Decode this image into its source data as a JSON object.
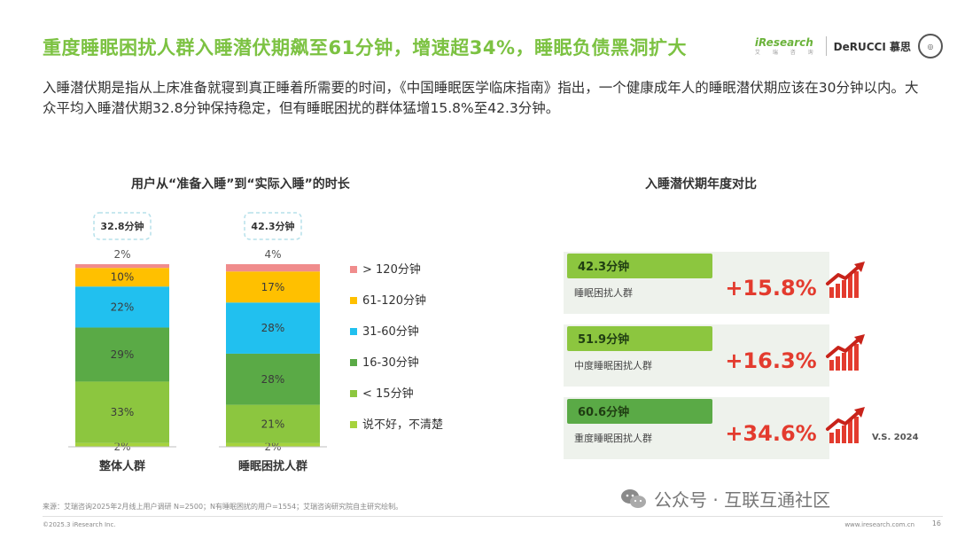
{
  "header": {
    "title": "重度睡眠困扰人群入睡潜伏期飙至61分钟，增速超34%，睡眠负债黑洞扩大",
    "logo_iresearch": "iResearch",
    "logo_iresearch_sub": "艾 瑞 咨 询",
    "logo_derucci": "DeRUCCI 慕思"
  },
  "description": "入睡潜伏期是指从上床准备就寝到真正睡着所需要的时间，《中国睡眠医学临床指南》指出，一个健康成年人的睡眠潜伏期应该在30分钟以内。大众平均入睡潜伏期32.8分钟保持稳定，但有睡眠困扰的群体猛增15.8%至42.3分钟。",
  "chart_data": [
    {
      "type": "bar",
      "stacked": true,
      "title": "用户从“准备入睡”到“实际入睡”的时长",
      "categories": [
        "整体人群",
        "睡眠困扰人群"
      ],
      "totals": [
        "32.8分钟",
        "42.3分钟"
      ],
      "series": [
        {
          "name": "说不好，不清楚",
          "values": [
            2,
            2
          ],
          "labels": [
            "2%",
            "2%"
          ],
          "color": "#a6d33c"
        },
        {
          "name": "< 15分钟",
          "values": [
            33,
            21
          ],
          "labels": [
            "33%",
            "21%"
          ],
          "color": "#8cc63f"
        },
        {
          "name": "16-30分钟",
          "values": [
            29,
            28
          ],
          "labels": [
            "29%",
            "28%"
          ],
          "color": "#5aaa46"
        },
        {
          "name": "31-60分钟",
          "values": [
            22,
            28
          ],
          "labels": [
            "22%",
            "28%"
          ],
          "color": "#21c0ef"
        },
        {
          "name": "61-120分钟",
          "values": [
            10,
            17
          ],
          "labels": [
            "10%",
            "17%"
          ],
          "color": "#ffc000"
        },
        {
          "name": "> 120分钟",
          "values": [
            2,
            4
          ],
          "labels": [
            "2%",
            "4%"
          ],
          "color": "#f08c8c"
        }
      ],
      "legend_order": [
        "> 120分钟",
        "61-120分钟",
        "31-60分钟",
        "16-30分钟",
        "< 15分钟",
        "说不好，不清楚"
      ],
      "legend_position": "right"
    },
    {
      "type": "table",
      "title": "入睡潜伏期年度对比",
      "rows": [
        {
          "value": "42.3分钟",
          "group": "睡眠困扰人群",
          "growth": "+15.8%"
        },
        {
          "value": "51.9分钟",
          "group": "中度睡眠困扰人群",
          "growth": "+16.3%"
        },
        {
          "value": "60.6分钟",
          "group": "重度睡眠困扰人群",
          "growth": "+34.6%"
        }
      ],
      "comparison": "V.S. 2024",
      "colors": {
        "tag": "#8cc63f",
        "tag_dark": "#5aaa46",
        "growth": "#e33b2e",
        "card": "#eef2ec"
      }
    }
  ],
  "footer": {
    "source": "来源：艾瑞咨询2025年2月线上用户调研 N=2500；N有睡眠困扰的用户=1554；艾瑞咨询研究院自主研究绘制。",
    "copyright": "©2025.3 iResearch Inc.",
    "url": "www.iresearch.com.cn",
    "page": "16"
  },
  "watermark": "公众号 · 互联互通社区"
}
